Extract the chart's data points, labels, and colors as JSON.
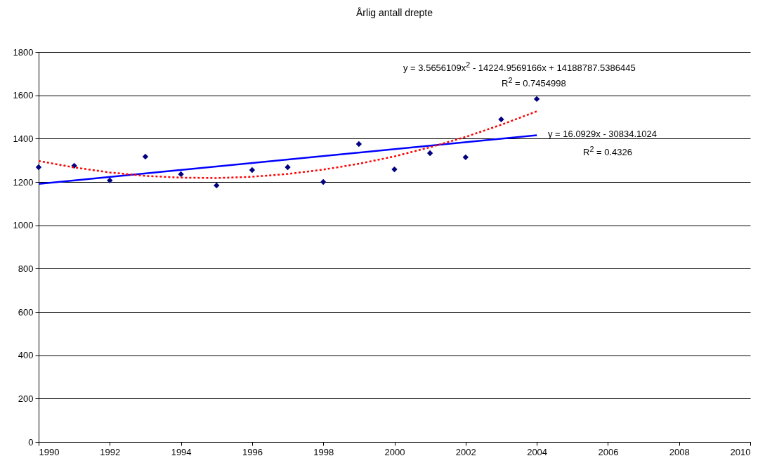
{
  "chart_data": {
    "type": "scatter",
    "title": "Årlig antall drepte",
    "x": [
      1990,
      1991,
      1992,
      1993,
      1994,
      1995,
      1996,
      1997,
      1998,
      1999,
      2000,
      2001,
      2002,
      2003,
      2004
    ],
    "series": [
      {
        "color": "#000080",
        "marker": "diamond",
        "values": [
          1268,
          1275,
          1207,
          1317,
          1236,
          1184,
          1255,
          1268,
          1200,
          1375,
          1258,
          1333,
          1314,
          1489,
          1583
        ]
      },
      {
        "type": "line",
        "color": "#0000ff",
        "line_style": "solid",
        "x": [
          1990,
          2004
        ],
        "values": [
          1191,
          1416
        ]
      },
      {
        "type": "line",
        "color": "#ff0000",
        "line_style": "dotted",
        "x": [
          1990,
          1991,
          1992,
          1993,
          1994,
          1995,
          1996,
          1997,
          1998,
          1999,
          2000,
          2001,
          2002,
          2003,
          2004
        ],
        "values": [
          1297,
          1267,
          1244,
          1228,
          1220,
          1218,
          1224,
          1237,
          1257,
          1284,
          1318,
          1360,
          1408,
          1464,
          1526
        ]
      }
    ],
    "xlim": [
      1990,
      2010
    ],
    "xticks": [
      1990,
      1992,
      1994,
      1996,
      1998,
      2000,
      2002,
      2004,
      2006,
      2008,
      2010
    ],
    "ylim": [
      0,
      1800
    ],
    "yticks": [
      0,
      200,
      400,
      600,
      800,
      1000,
      1200,
      1400,
      1600,
      1800
    ],
    "grid": "y",
    "annotations": [
      "y = 3.5656109x$^{2}$ - 14224.9569166x + 14188787.5386445",
      "R$^{2}$ = 0.7454998",
      "y = 16.0929x - 30834.1024",
      "R$^{2}$ = 0.4326"
    ]
  }
}
